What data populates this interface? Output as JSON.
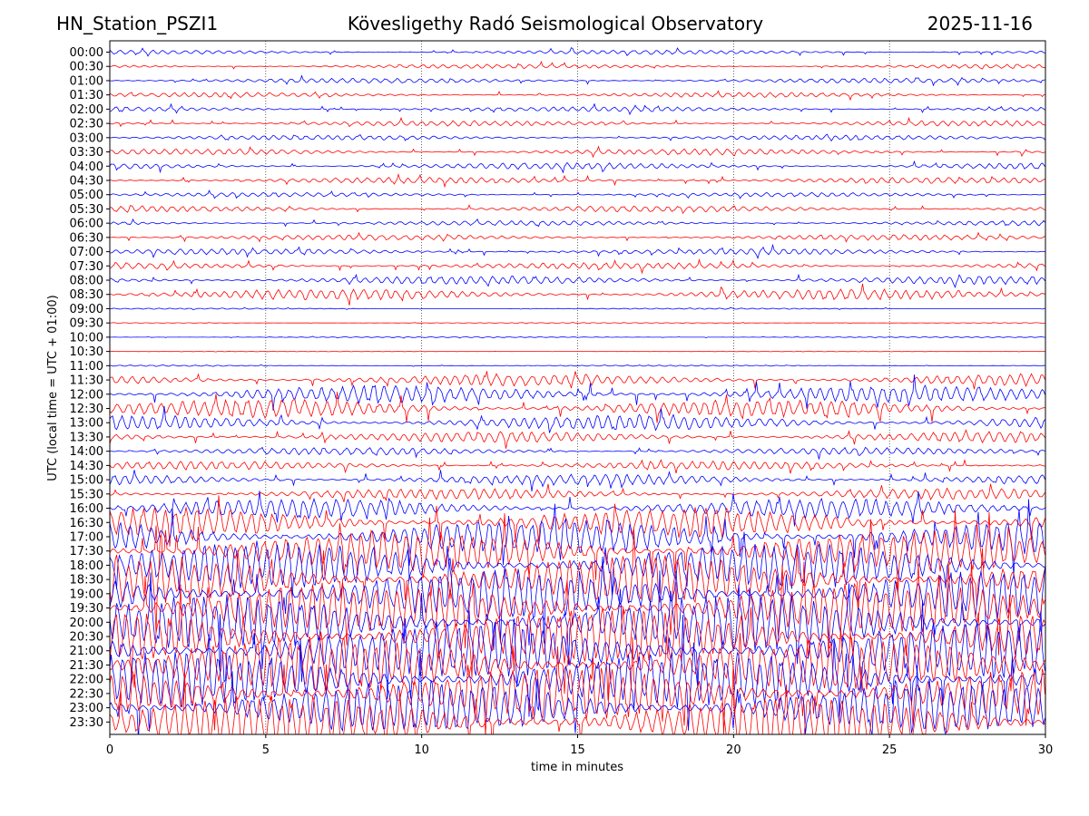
{
  "header": {
    "station": "HN_Station_PSZI1",
    "observatory": "Kövesligethy Radó Seismological Observatory",
    "date": "2025-11-16"
  },
  "chart_data": {
    "type": "line",
    "title": "Kövesligethy Radó Seismological Observatory",
    "xlabel": "time in minutes",
    "ylabel": "UTC (local time = UTC + 01:00)",
    "xlim": [
      0,
      30
    ],
    "xticks": [
      "0",
      "5",
      "10",
      "15",
      "20",
      "25",
      "30"
    ],
    "grid": "vertical dotted lines at 5-minute intervals",
    "colors": {
      "even_rows": "#0000ff",
      "odd_rows": "#ff0000"
    },
    "rows": [
      {
        "label": "00:00",
        "amp": 0.35
      },
      {
        "label": "00:30",
        "amp": 0.35
      },
      {
        "label": "01:00",
        "amp": 0.4
      },
      {
        "label": "01:30",
        "amp": 0.4
      },
      {
        "label": "02:00",
        "amp": 0.4
      },
      {
        "label": "02:30",
        "amp": 0.45
      },
      {
        "label": "03:00",
        "amp": 0.4
      },
      {
        "label": "03:30",
        "amp": 0.5
      },
      {
        "label": "04:00",
        "amp": 0.55
      },
      {
        "label": "04:30",
        "amp": 0.5
      },
      {
        "label": "05:00",
        "amp": 0.35
      },
      {
        "label": "05:30",
        "amp": 0.5
      },
      {
        "label": "06:00",
        "amp": 0.4
      },
      {
        "label": "06:30",
        "amp": 0.45
      },
      {
        "label": "07:00",
        "amp": 0.5
      },
      {
        "label": "07:30",
        "amp": 0.55
      },
      {
        "label": "08:00",
        "amp": 0.7
      },
      {
        "label": "08:30",
        "amp": 0.9
      },
      {
        "label": "09:00",
        "amp": 0.1
      },
      {
        "label": "09:30",
        "amp": 0.06
      },
      {
        "label": "10:00",
        "amp": 0.08
      },
      {
        "label": "10:30",
        "amp": 0.05
      },
      {
        "label": "11:00",
        "amp": 0.1
      },
      {
        "label": "11:30",
        "amp": 1.0
      },
      {
        "label": "12:00",
        "amp": 1.4
      },
      {
        "label": "12:30",
        "amp": 1.5
      },
      {
        "label": "13:00",
        "amp": 1.3
      },
      {
        "label": "13:30",
        "amp": 0.9
      },
      {
        "label": "14:00",
        "amp": 0.6
      },
      {
        "label": "14:30",
        "amp": 0.7
      },
      {
        "label": "15:00",
        "amp": 0.9
      },
      {
        "label": "15:30",
        "amp": 0.9
      },
      {
        "label": "16:00",
        "amp": 1.6
      },
      {
        "label": "16:30",
        "amp": 2.4
      },
      {
        "label": "17:00",
        "amp": 3.0
      },
      {
        "label": "17:30",
        "amp": 3.4
      },
      {
        "label": "18:00",
        "amp": 3.8
      },
      {
        "label": "18:30",
        "amp": 4.0
      },
      {
        "label": "19:00",
        "amp": 4.2
      },
      {
        "label": "19:30",
        "amp": 4.3
      },
      {
        "label": "20:00",
        "amp": 4.5
      },
      {
        "label": "20:30",
        "amp": 4.6
      },
      {
        "label": "21:00",
        "amp": 4.6
      },
      {
        "label": "21:30",
        "amp": 4.6
      },
      {
        "label": "22:00",
        "amp": 4.6
      },
      {
        "label": "22:30",
        "amp": 4.5
      },
      {
        "label": "23:00",
        "amp": 4.5
      },
      {
        "label": "23:30",
        "amp": 4.3
      }
    ]
  }
}
